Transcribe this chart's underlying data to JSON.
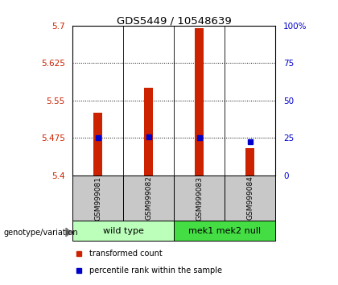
{
  "title": "GDS5449 / 10548639",
  "samples": [
    "GSM999081",
    "GSM999082",
    "GSM999083",
    "GSM999084"
  ],
  "bar_values": [
    5.525,
    5.575,
    5.695,
    5.455
  ],
  "percentile_values": [
    5.475,
    5.477,
    5.476,
    5.468
  ],
  "bar_color": "#cc2200",
  "percentile_color": "#0000cc",
  "ylim_left": [
    5.4,
    5.7
  ],
  "ylim_right": [
    0,
    100
  ],
  "yticks_left": [
    5.4,
    5.475,
    5.55,
    5.625,
    5.7
  ],
  "ytick_labels_left": [
    "5.4",
    "5.475",
    "5.55",
    "5.625",
    "5.7"
  ],
  "yticks_right": [
    0,
    25,
    50,
    75,
    100
  ],
  "ytick_labels_right": [
    "0",
    "25",
    "50",
    "75",
    "100%"
  ],
  "hlines": [
    5.475,
    5.55,
    5.625
  ],
  "groups": [
    {
      "label": "wild type",
      "indices": [
        0,
        1
      ],
      "color": "#bbffbb"
    },
    {
      "label": "mek1 mek2 null",
      "indices": [
        2,
        3
      ],
      "color": "#44dd44"
    }
  ],
  "genotype_label": "genotype/variation",
  "legend_items": [
    {
      "label": "transformed count",
      "color": "#cc2200"
    },
    {
      "label": "percentile rank within the sample",
      "color": "#0000cc"
    }
  ],
  "bar_width": 0.18,
  "sample_box_color": "#c8c8c8",
  "background_color": "#ffffff"
}
